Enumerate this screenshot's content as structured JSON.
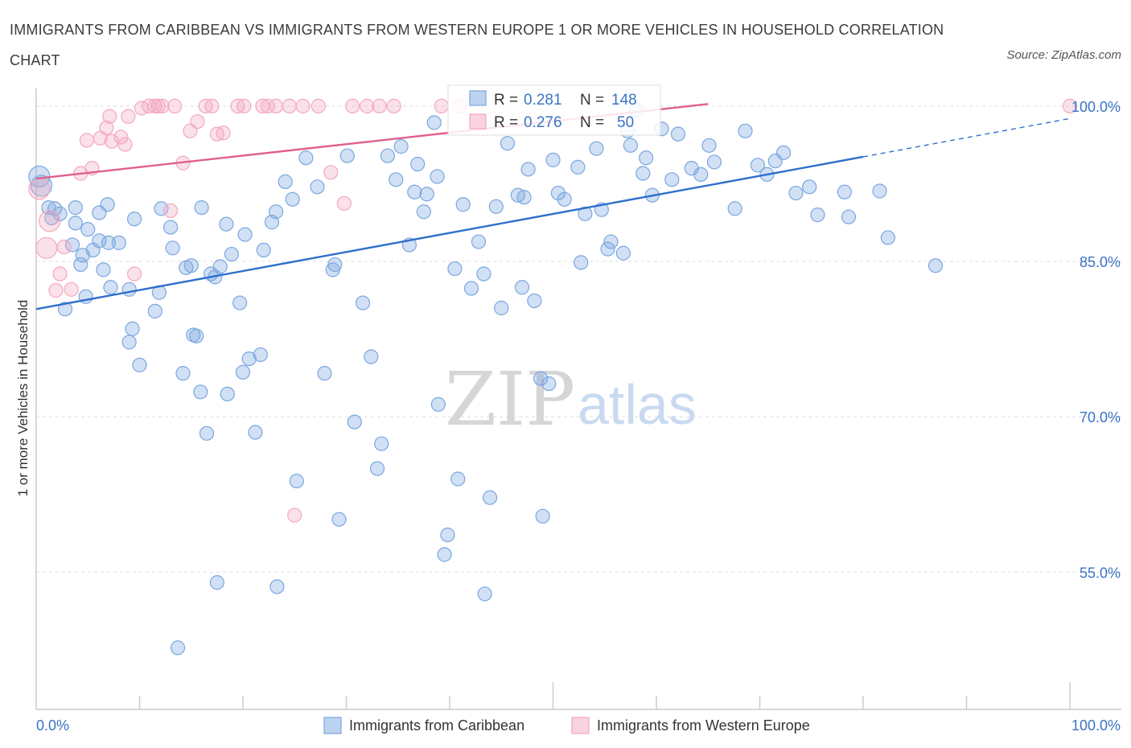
{
  "title": "IMMIGRANTS FROM CARIBBEAN VS IMMIGRANTS FROM WESTERN EUROPE 1 OR MORE VEHICLES IN HOUSEHOLD CORRELATION CHART",
  "source": "Source: ZipAtlas.com",
  "watermark": {
    "zip": "ZIP",
    "atlas": "atlas"
  },
  "chart_data": {
    "type": "scatter",
    "ylabel": "1 or more Vehicles in Household",
    "xlim": [
      0,
      100
    ],
    "ylim": [
      40,
      100
    ],
    "x_tick_labels": [
      "0.0%",
      "100.0%"
    ],
    "y_ticks": [
      100,
      85,
      70,
      55
    ],
    "y_tick_labels": [
      "100.0%",
      "85.0%",
      "70.0%",
      "55.0%"
    ],
    "grid": true,
    "legend_position": "bottom",
    "stats": [
      {
        "r_label": "R =",
        "r": "0.281",
        "n_label": "N =",
        "n": "148"
      },
      {
        "r_label": "R =",
        "r": "0.276",
        "n_label": "N =",
        "n": "50"
      }
    ],
    "series": [
      {
        "name": "Immigrants from Caribbean",
        "color": "#7aa7e0",
        "trend_color": "#2f6fcc",
        "trend": {
          "x0": 0,
          "y0": 80.4,
          "x1": 80,
          "y1": 95.1,
          "dash_to_x": 100,
          "dash_to_y": 98.8
        },
        "points": [
          [
            0.3,
            93.2
          ],
          [
            0.5,
            92.3
          ],
          [
            1.2,
            90.2
          ],
          [
            1.5,
            89.2
          ],
          [
            1.8,
            90.1
          ],
          [
            2.3,
            89.6
          ],
          [
            2.8,
            80.4
          ],
          [
            3.5,
            86.6
          ],
          [
            3.8,
            90.2
          ],
          [
            3.8,
            88.7
          ],
          [
            4.3,
            84.7
          ],
          [
            4.5,
            85.6
          ],
          [
            4.8,
            81.6
          ],
          [
            5.0,
            88.1
          ],
          [
            5.5,
            86.1
          ],
          [
            6.1,
            87.0
          ],
          [
            6.5,
            84.2
          ],
          [
            6.1,
            89.7
          ],
          [
            7.0,
            86.8
          ],
          [
            7.2,
            82.5
          ],
          [
            8.0,
            86.8
          ],
          [
            9.0,
            82.3
          ],
          [
            9.3,
            78.5
          ],
          [
            9.0,
            77.2
          ],
          [
            9.5,
            89.1
          ],
          [
            10.0,
            75.0
          ],
          [
            11.5,
            80.2
          ],
          [
            11.9,
            82.0
          ],
          [
            12.1,
            90.1
          ],
          [
            13.0,
            88.3
          ],
          [
            13.2,
            86.3
          ],
          [
            14.2,
            74.2
          ],
          [
            14.5,
            84.4
          ],
          [
            15.0,
            84.6
          ],
          [
            15.2,
            77.9
          ],
          [
            15.5,
            77.8
          ],
          [
            15.9,
            72.4
          ],
          [
            16.0,
            90.2
          ],
          [
            16.5,
            68.4
          ],
          [
            16.9,
            83.8
          ],
          [
            17.3,
            83.5
          ],
          [
            17.8,
            84.5
          ],
          [
            18.4,
            88.6
          ],
          [
            18.5,
            72.2
          ],
          [
            18.9,
            85.7
          ],
          [
            19.7,
            81.0
          ],
          [
            20.0,
            74.3
          ],
          [
            20.6,
            75.6
          ],
          [
            21.2,
            68.5
          ],
          [
            21.7,
            76.0
          ],
          [
            22.0,
            86.1
          ],
          [
            22.8,
            88.8
          ],
          [
            23.2,
            89.8
          ],
          [
            24.1,
            92.7
          ],
          [
            24.8,
            91.0
          ],
          [
            25.2,
            63.8
          ],
          [
            26.1,
            95.0
          ],
          [
            27.2,
            92.2
          ],
          [
            27.9,
            74.2
          ],
          [
            28.7,
            84.2
          ],
          [
            28.9,
            84.7
          ],
          [
            29.3,
            60.1
          ],
          [
            30.1,
            95.2
          ],
          [
            30.8,
            69.5
          ],
          [
            31.6,
            81.0
          ],
          [
            32.4,
            75.8
          ],
          [
            33.0,
            65.0
          ],
          [
            33.4,
            67.4
          ],
          [
            34.0,
            95.2
          ],
          [
            34.8,
            92.9
          ],
          [
            35.3,
            96.1
          ],
          [
            36.1,
            86.6
          ],
          [
            36.6,
            91.7
          ],
          [
            36.9,
            94.4
          ],
          [
            37.5,
            89.8
          ],
          [
            37.8,
            91.5
          ],
          [
            38.5,
            98.4
          ],
          [
            38.8,
            93.2
          ],
          [
            38.9,
            71.2
          ],
          [
            39.5,
            56.7
          ],
          [
            39.8,
            58.6
          ],
          [
            40.5,
            84.3
          ],
          [
            40.8,
            64.0
          ],
          [
            41.3,
            90.5
          ],
          [
            42.1,
            82.4
          ],
          [
            42.8,
            86.9
          ],
          [
            43.3,
            83.8
          ],
          [
            43.9,
            62.2
          ],
          [
            44.5,
            90.3
          ],
          [
            45.0,
            80.5
          ],
          [
            45.6,
            96.4
          ],
          [
            46.6,
            91.4
          ],
          [
            47.0,
            82.5
          ],
          [
            47.2,
            91.2
          ],
          [
            47.6,
            93.9
          ],
          [
            48.2,
            81.2
          ],
          [
            48.8,
            73.7
          ],
          [
            49.6,
            73.2
          ],
          [
            50.0,
            94.8
          ],
          [
            50.5,
            91.6
          ],
          [
            51.1,
            91.0
          ],
          [
            52.4,
            94.1
          ],
          [
            52.7,
            84.9
          ],
          [
            53.1,
            89.6
          ],
          [
            54.2,
            95.9
          ],
          [
            54.7,
            90.0
          ],
          [
            55.3,
            86.2
          ],
          [
            55.6,
            86.9
          ],
          [
            56.8,
            85.8
          ],
          [
            57.2,
            97.6
          ],
          [
            57.5,
            96.2
          ],
          [
            58.1,
            99.6
          ],
          [
            58.7,
            93.5
          ],
          [
            59.0,
            95.0
          ],
          [
            59.6,
            91.4
          ],
          [
            60.5,
            97.8
          ],
          [
            61.5,
            92.9
          ],
          [
            62.1,
            97.3
          ],
          [
            63.4,
            94.0
          ],
          [
            64.3,
            93.4
          ],
          [
            65.1,
            96.2
          ],
          [
            65.6,
            94.6
          ],
          [
            67.6,
            90.1
          ],
          [
            68.6,
            97.6
          ],
          [
            69.8,
            94.3
          ],
          [
            70.7,
            93.4
          ],
          [
            71.5,
            94.7
          ],
          [
            72.3,
            95.5
          ],
          [
            73.5,
            91.6
          ],
          [
            74.8,
            92.2
          ],
          [
            75.6,
            89.5
          ],
          [
            78.2,
            91.7
          ],
          [
            78.6,
            89.3
          ],
          [
            81.6,
            91.8
          ],
          [
            82.4,
            87.3
          ],
          [
            87.0,
            84.6
          ],
          [
            43.4,
            52.9
          ],
          [
            13.7,
            47.7
          ],
          [
            17.5,
            54.0
          ],
          [
            23.3,
            53.6
          ],
          [
            49.0,
            60.4
          ],
          [
            6.9,
            90.5
          ],
          [
            20.2,
            87.6
          ]
        ]
      },
      {
        "name": "Immigrants from Western Europe",
        "color": "#f3a8bf",
        "trend_color": "#e0608c",
        "trend": {
          "x0": 0,
          "y0": 93.0,
          "x1": 65,
          "y1": 100.2
        },
        "points": [
          [
            0.3,
            92.0
          ],
          [
            1.0,
            86.3
          ],
          [
            1.3,
            88.9
          ],
          [
            1.9,
            82.2
          ],
          [
            2.3,
            83.8
          ],
          [
            2.7,
            86.4
          ],
          [
            3.4,
            82.3
          ],
          [
            4.3,
            93.5
          ],
          [
            4.9,
            96.7
          ],
          [
            5.4,
            94.0
          ],
          [
            6.2,
            96.9
          ],
          [
            6.8,
            97.9
          ],
          [
            7.1,
            99.0
          ],
          [
            7.3,
            96.6
          ],
          [
            8.2,
            97.0
          ],
          [
            8.6,
            96.3
          ],
          [
            8.9,
            99.0
          ],
          [
            9.5,
            83.8
          ],
          [
            10.2,
            99.8
          ],
          [
            10.9,
            100.0
          ],
          [
            11.5,
            100.0
          ],
          [
            11.8,
            100.0
          ],
          [
            12.2,
            100.0
          ],
          [
            13.0,
            89.9
          ],
          [
            13.4,
            100.0
          ],
          [
            14.2,
            94.5
          ],
          [
            14.9,
            97.6
          ],
          [
            15.6,
            98.5
          ],
          [
            16.4,
            100.0
          ],
          [
            17.0,
            100.0
          ],
          [
            17.5,
            97.3
          ],
          [
            18.1,
            97.4
          ],
          [
            19.5,
            100.0
          ],
          [
            20.1,
            100.0
          ],
          [
            21.9,
            100.0
          ],
          [
            22.4,
            100.0
          ],
          [
            23.2,
            100.0
          ],
          [
            24.5,
            100.0
          ],
          [
            25.8,
            100.0
          ],
          [
            27.3,
            100.0
          ],
          [
            28.5,
            93.6
          ],
          [
            29.8,
            90.6
          ],
          [
            30.6,
            100.0
          ],
          [
            32.0,
            100.0
          ],
          [
            33.2,
            100.0
          ],
          [
            34.6,
            100.0
          ],
          [
            39.2,
            100.0
          ],
          [
            25.0,
            60.5
          ],
          [
            41.0,
            100.0
          ],
          [
            100.0,
            100.0
          ]
        ]
      }
    ]
  }
}
